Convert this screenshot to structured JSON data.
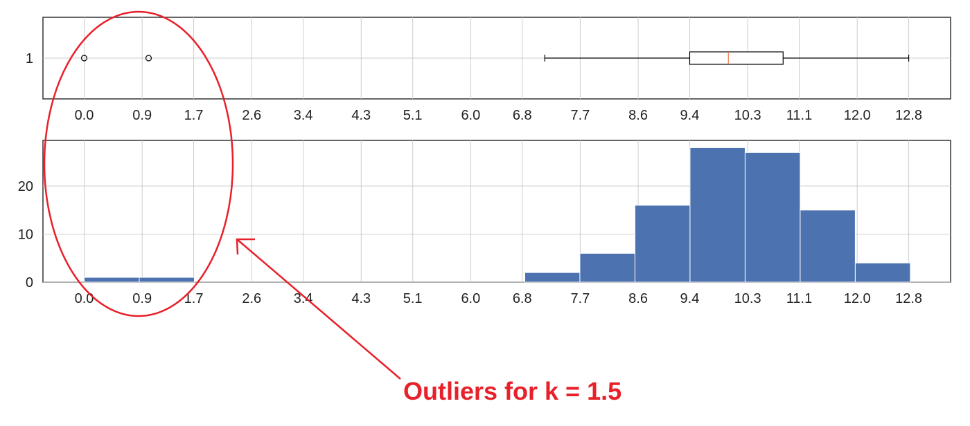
{
  "chart_data": [
    {
      "type": "box",
      "ytick_labels": [
        "1"
      ],
      "xticks": [
        0.0,
        0.9,
        1.7,
        2.6,
        3.4,
        4.3,
        5.1,
        6.0,
        6.8,
        7.7,
        8.6,
        9.4,
        10.3,
        11.1,
        12.0,
        12.8
      ],
      "xtick_labels": [
        "0.0",
        "0.9",
        "1.7",
        "2.6",
        "3.4",
        "4.3",
        "5.1",
        "6.0",
        "6.8",
        "7.7",
        "8.6",
        "9.4",
        "10.3",
        "11.1",
        "12.0",
        "12.8"
      ],
      "xlim": [
        -0.64,
        13.45
      ],
      "box": {
        "whisker_low": 7.15,
        "q1": 9.4,
        "median": 10.0,
        "q3": 10.85,
        "whisker_high": 12.8
      },
      "outliers": [
        0.0,
        1.0
      ],
      "grid": true
    },
    {
      "type": "bar",
      "bins": [
        {
          "x0": 0.0,
          "x1": 0.855,
          "count": 1
        },
        {
          "x0": 0.855,
          "x1": 1.71,
          "count": 1
        },
        {
          "x0": 6.84,
          "x1": 7.695,
          "count": 2
        },
        {
          "x0": 7.695,
          "x1": 8.55,
          "count": 6
        },
        {
          "x0": 8.55,
          "x1": 9.405,
          "count": 16
        },
        {
          "x0": 9.405,
          "x1": 10.26,
          "count": 28
        },
        {
          "x0": 10.26,
          "x1": 11.115,
          "count": 27
        },
        {
          "x0": 11.115,
          "x1": 11.97,
          "count": 15
        },
        {
          "x0": 11.97,
          "x1": 12.825,
          "count": 4
        }
      ],
      "yticks": [
        0,
        10,
        20
      ],
      "ytick_labels": [
        "0",
        "10",
        "20"
      ],
      "xticks": [
        0.0,
        0.9,
        1.7,
        2.6,
        3.4,
        4.3,
        5.1,
        6.0,
        6.8,
        7.7,
        8.6,
        9.4,
        10.3,
        11.1,
        12.0,
        12.8
      ],
      "xtick_labels": [
        "0.0",
        "0.9",
        "1.7",
        "2.6",
        "3.4",
        "4.3",
        "5.1",
        "6.0",
        "6.8",
        "7.7",
        "8.6",
        "9.4",
        "10.3",
        "11.1",
        "12.0",
        "12.8"
      ],
      "xlim": [
        -0.64,
        13.45
      ],
      "ylim": [
        0,
        29.5
      ],
      "grid": true
    }
  ],
  "annotation": {
    "text": "Outliers for k = 1.5",
    "color": "#e8202a"
  },
  "colors": {
    "bar": "#4c72b0",
    "median": "#e8744a",
    "grid": "#cccccc",
    "axes": "#333333"
  }
}
